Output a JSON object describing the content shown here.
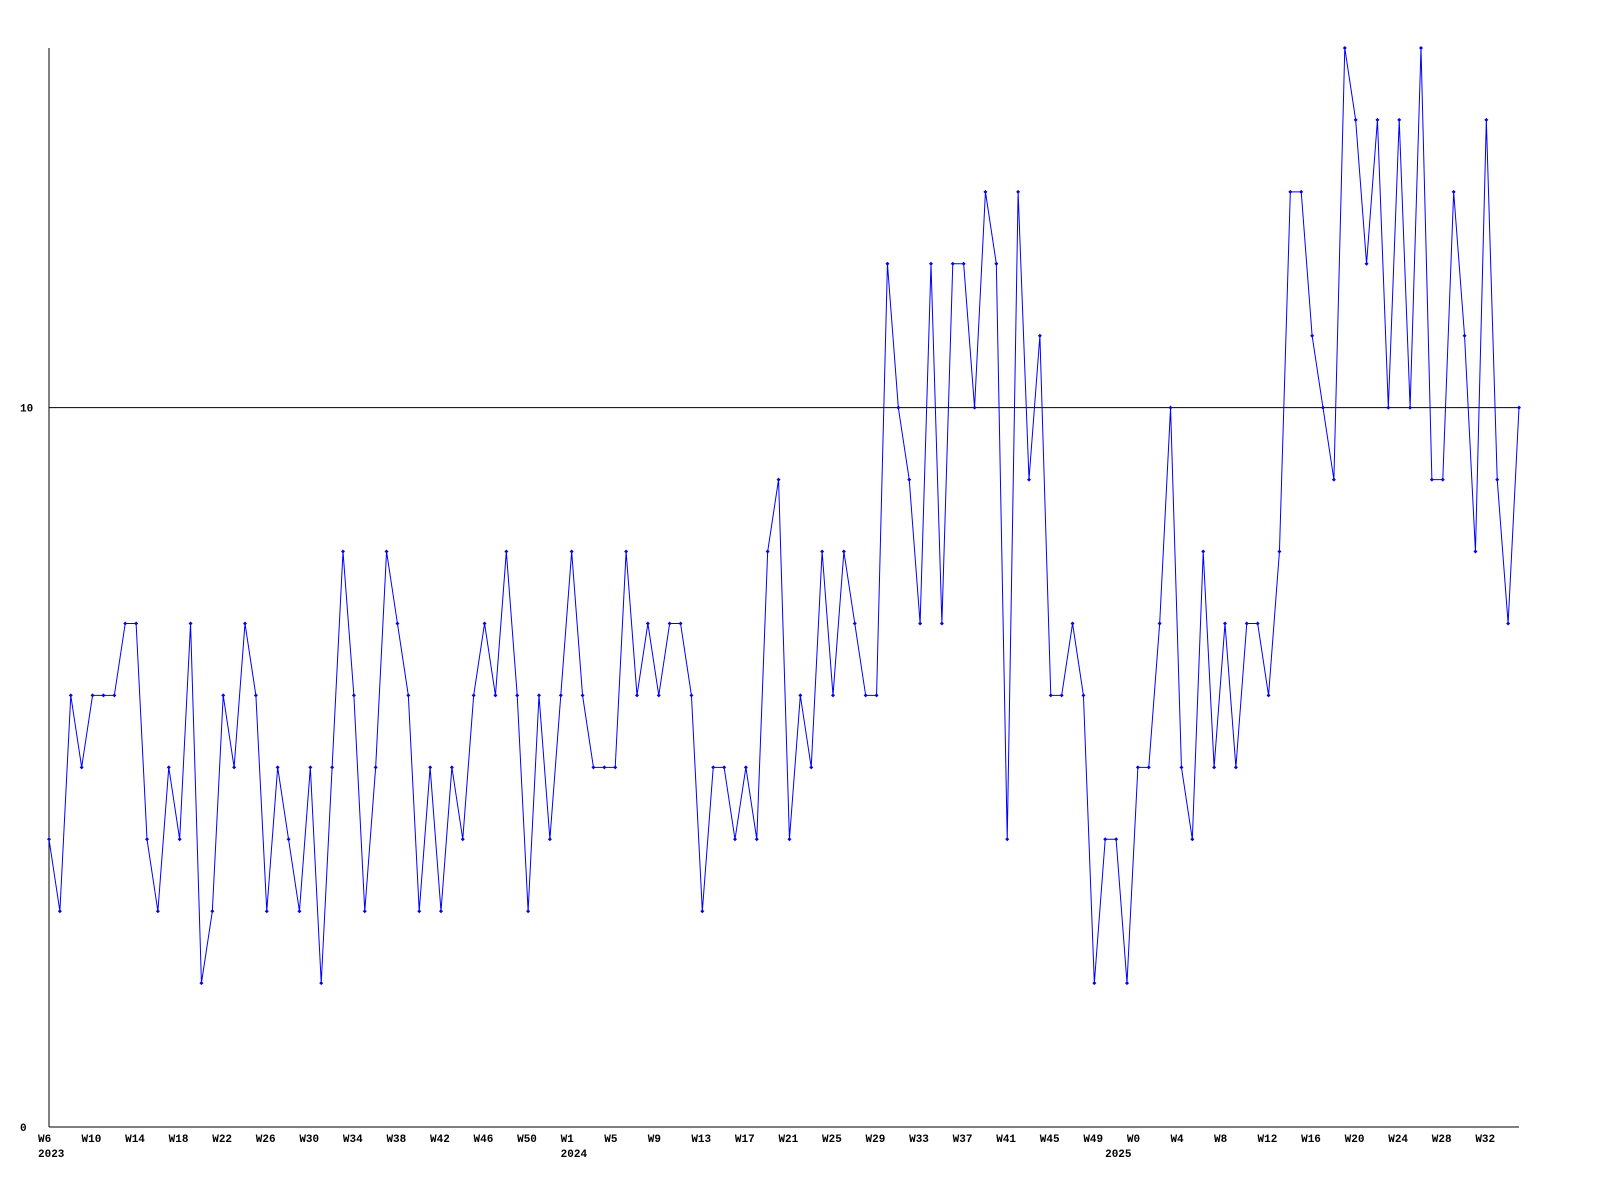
{
  "chart_data": {
    "type": "line",
    "categories": [
      "W6",
      null,
      null,
      null,
      "W10",
      null,
      null,
      null,
      "W14",
      null,
      null,
      null,
      "W18",
      null,
      null,
      null,
      "W22",
      null,
      null,
      null,
      "W26",
      null,
      null,
      null,
      "W30",
      null,
      null,
      null,
      "W34",
      null,
      null,
      null,
      "W38",
      null,
      null,
      null,
      "W42",
      null,
      null,
      null,
      "W46",
      null,
      null,
      null,
      "W50",
      null,
      null,
      null,
      "W1",
      null,
      null,
      null,
      "W5",
      null,
      null,
      null,
      "W9",
      null,
      null,
      null,
      "W13",
      null,
      null,
      null,
      "W17",
      null,
      null,
      null,
      "W21",
      null,
      null,
      null,
      "W25",
      null,
      null,
      null,
      "W29",
      null,
      null,
      null,
      "W33",
      null,
      null,
      null,
      "W37",
      null,
      null,
      null,
      "W41",
      null,
      null,
      null,
      "W45",
      null,
      null,
      null,
      "W49",
      null,
      null,
      null,
      "W0",
      null,
      null,
      null,
      "W4",
      null,
      null,
      null,
      "W8",
      null,
      null,
      null,
      "W12",
      null,
      null,
      null,
      "W16",
      null,
      null,
      null,
      "W20",
      null,
      null,
      null,
      "W24",
      null,
      null,
      null,
      "W28",
      null,
      null,
      null,
      "W32",
      null,
      null,
      null
    ],
    "year_labels": [
      "2023",
      null,
      null,
      null,
      null,
      null,
      null,
      null,
      null,
      null,
      null,
      null,
      null,
      null,
      null,
      null,
      null,
      null,
      null,
      null,
      null,
      null,
      null,
      null,
      null,
      null,
      null,
      null,
      null,
      null,
      null,
      null,
      null,
      null,
      null,
      null,
      null,
      null,
      null,
      null,
      null,
      null,
      null,
      null,
      null,
      null,
      null,
      null,
      "2024",
      null,
      null,
      null,
      null,
      null,
      null,
      null,
      null,
      null,
      null,
      null,
      null,
      null,
      null,
      null,
      null,
      null,
      null,
      null,
      null,
      null,
      null,
      null,
      null,
      null,
      null,
      null,
      null,
      null,
      null,
      null,
      null,
      null,
      null,
      null,
      null,
      null,
      null,
      null,
      null,
      null,
      null,
      null,
      null,
      null,
      null,
      null,
      null,
      null,
      "2025",
      null,
      null,
      null,
      null,
      null,
      null,
      null,
      null,
      null,
      null,
      null,
      null,
      null,
      null,
      null,
      null,
      null,
      null,
      null,
      null,
      null,
      null,
      null,
      null,
      null,
      null,
      null,
      null,
      null,
      null,
      null,
      null,
      null,
      null,
      null
    ],
    "series": [
      {
        "color": "#0000ff",
        "values": [
          4,
          3,
          6,
          5,
          6,
          6,
          6,
          7,
          7,
          4,
          3,
          5,
          4,
          7,
          2,
          3,
          6,
          5,
          7,
          6,
          3,
          5,
          4,
          3,
          5,
          2,
          5,
          8,
          6,
          3,
          5,
          8,
          7,
          6,
          3,
          5,
          3,
          5,
          4,
          6,
          7,
          6,
          8,
          6,
          3,
          6,
          4,
          6,
          8,
          6,
          5,
          5,
          5,
          8,
          6,
          7,
          6,
          7,
          7,
          6,
          3,
          5,
          5,
          4,
          5,
          4,
          8,
          9,
          4,
          6,
          5,
          8,
          6,
          8,
          7,
          6,
          6,
          12,
          10,
          9,
          7,
          12,
          7,
          12,
          12,
          10,
          13,
          12,
          4,
          13,
          9,
          11,
          6,
          6,
          7,
          6,
          2,
          4,
          4,
          2,
          5,
          5,
          7,
          10,
          5,
          4,
          8,
          5,
          7,
          5,
          7,
          7,
          6,
          8,
          13,
          13,
          11,
          10,
          9,
          15,
          14,
          12,
          14,
          10,
          14,
          10,
          15,
          9,
          9,
          13,
          11,
          8,
          14,
          9,
          7,
          10
        ]
      }
    ],
    "ylim": [
      0,
      15
    ],
    "yticks": [
      0,
      10
    ],
    "grid": true
  }
}
